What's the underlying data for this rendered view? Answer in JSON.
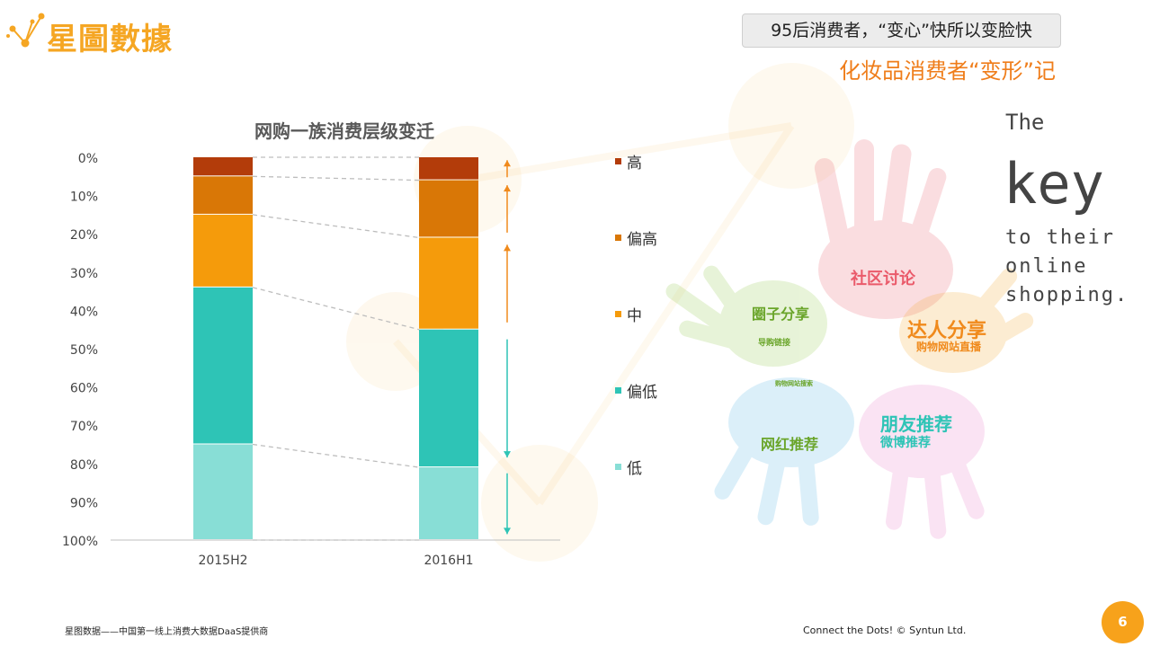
{
  "brand": {
    "name": "星圖數據",
    "accent": "#f5a623"
  },
  "header": {
    "subtitle": "95后消费者，“变心”快所以变脸快",
    "headline": "化妆品消费者“变形”记"
  },
  "key_text": {
    "the": "The",
    "key": "key",
    "line1": "to their",
    "line2": "online",
    "line3": "shopping."
  },
  "hand_labels": {
    "community": "社区讨论",
    "circle": "圈子分享",
    "guide": "导购链接",
    "kol": "达人分享",
    "shop_live": "购物网站直播",
    "search": "购物网站搜索",
    "influencer": "网红推荐",
    "friend": "朋友推荐",
    "weibo": "微博推荐"
  },
  "footer": {
    "left": "星图数据——中国第一线上消费大数据DaaS提供商",
    "right": "Connect the Dots!  © Syntun Ltd.",
    "page": "6"
  },
  "chart_data": {
    "type": "bar",
    "stacked": true,
    "percent": true,
    "title": "网购一族消费层级变迁",
    "categories": [
      "2015H2",
      "2016H1"
    ],
    "series": [
      {
        "name": "高",
        "color": "#b33c0a",
        "values": [
          5,
          6
        ]
      },
      {
        "name": "偏高",
        "color": "#d97706",
        "values": [
          10,
          15
        ]
      },
      {
        "name": "中",
        "color": "#f59b0b",
        "values": [
          19,
          24
        ]
      },
      {
        "name": "偏低",
        "color": "#2ec4b6",
        "values": [
          41,
          36
        ]
      },
      {
        "name": "低",
        "color": "#88ded6",
        "values": [
          25,
          19
        ]
      }
    ],
    "y_ticks": [
      "0%",
      "10%",
      "20%",
      "30%",
      "40%",
      "50%",
      "60%",
      "70%",
      "80%",
      "90%",
      "100%"
    ],
    "y_inverted": true,
    "ylim": [
      0,
      100
    ],
    "legend": "right",
    "trend_arrows": [
      {
        "series": "高",
        "direction": "up"
      },
      {
        "series": "偏高",
        "direction": "up"
      },
      {
        "series": "中",
        "direction": "up"
      },
      {
        "series": "偏低",
        "direction": "down"
      },
      {
        "series": "低",
        "direction": "down"
      }
    ],
    "arrow_colors": {
      "up": "#f08a1c",
      "down": "#2ec4b6"
    }
  }
}
